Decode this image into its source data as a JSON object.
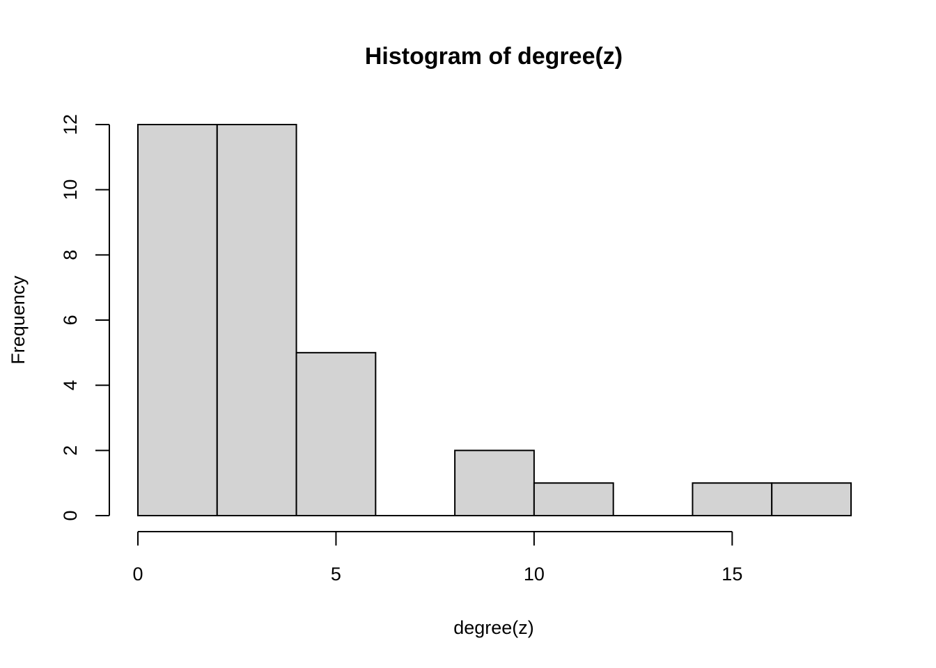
{
  "chart_data": {
    "type": "bar",
    "subtype": "histogram",
    "title": "Histogram of degree(z)",
    "xlabel": "degree(z)",
    "ylabel": "Frequency",
    "bins": [
      {
        "start": 0,
        "end": 2,
        "count": 12
      },
      {
        "start": 2,
        "end": 4,
        "count": 12
      },
      {
        "start": 4,
        "end": 6,
        "count": 5
      },
      {
        "start": 6,
        "end": 8,
        "count": 0
      },
      {
        "start": 8,
        "end": 10,
        "count": 2
      },
      {
        "start": 10,
        "end": 12,
        "count": 1
      },
      {
        "start": 12,
        "end": 14,
        "count": 0
      },
      {
        "start": 14,
        "end": 16,
        "count": 1
      },
      {
        "start": 16,
        "end": 18,
        "count": 1
      }
    ],
    "x_ticks": [
      0,
      5,
      10,
      15
    ],
    "x_tick_labels": [
      "0",
      "5",
      "10",
      "15"
    ],
    "y_ticks": [
      0,
      2,
      4,
      6,
      8,
      10,
      12
    ],
    "y_tick_labels": [
      "0",
      "2",
      "4",
      "6",
      "8",
      "10",
      "12"
    ],
    "xlim": [
      0,
      18
    ],
    "ylim": [
      0,
      12
    ],
    "bar_fill": "#d3d3d3",
    "bar_stroke": "#000000",
    "grid": false,
    "legend": "none"
  }
}
